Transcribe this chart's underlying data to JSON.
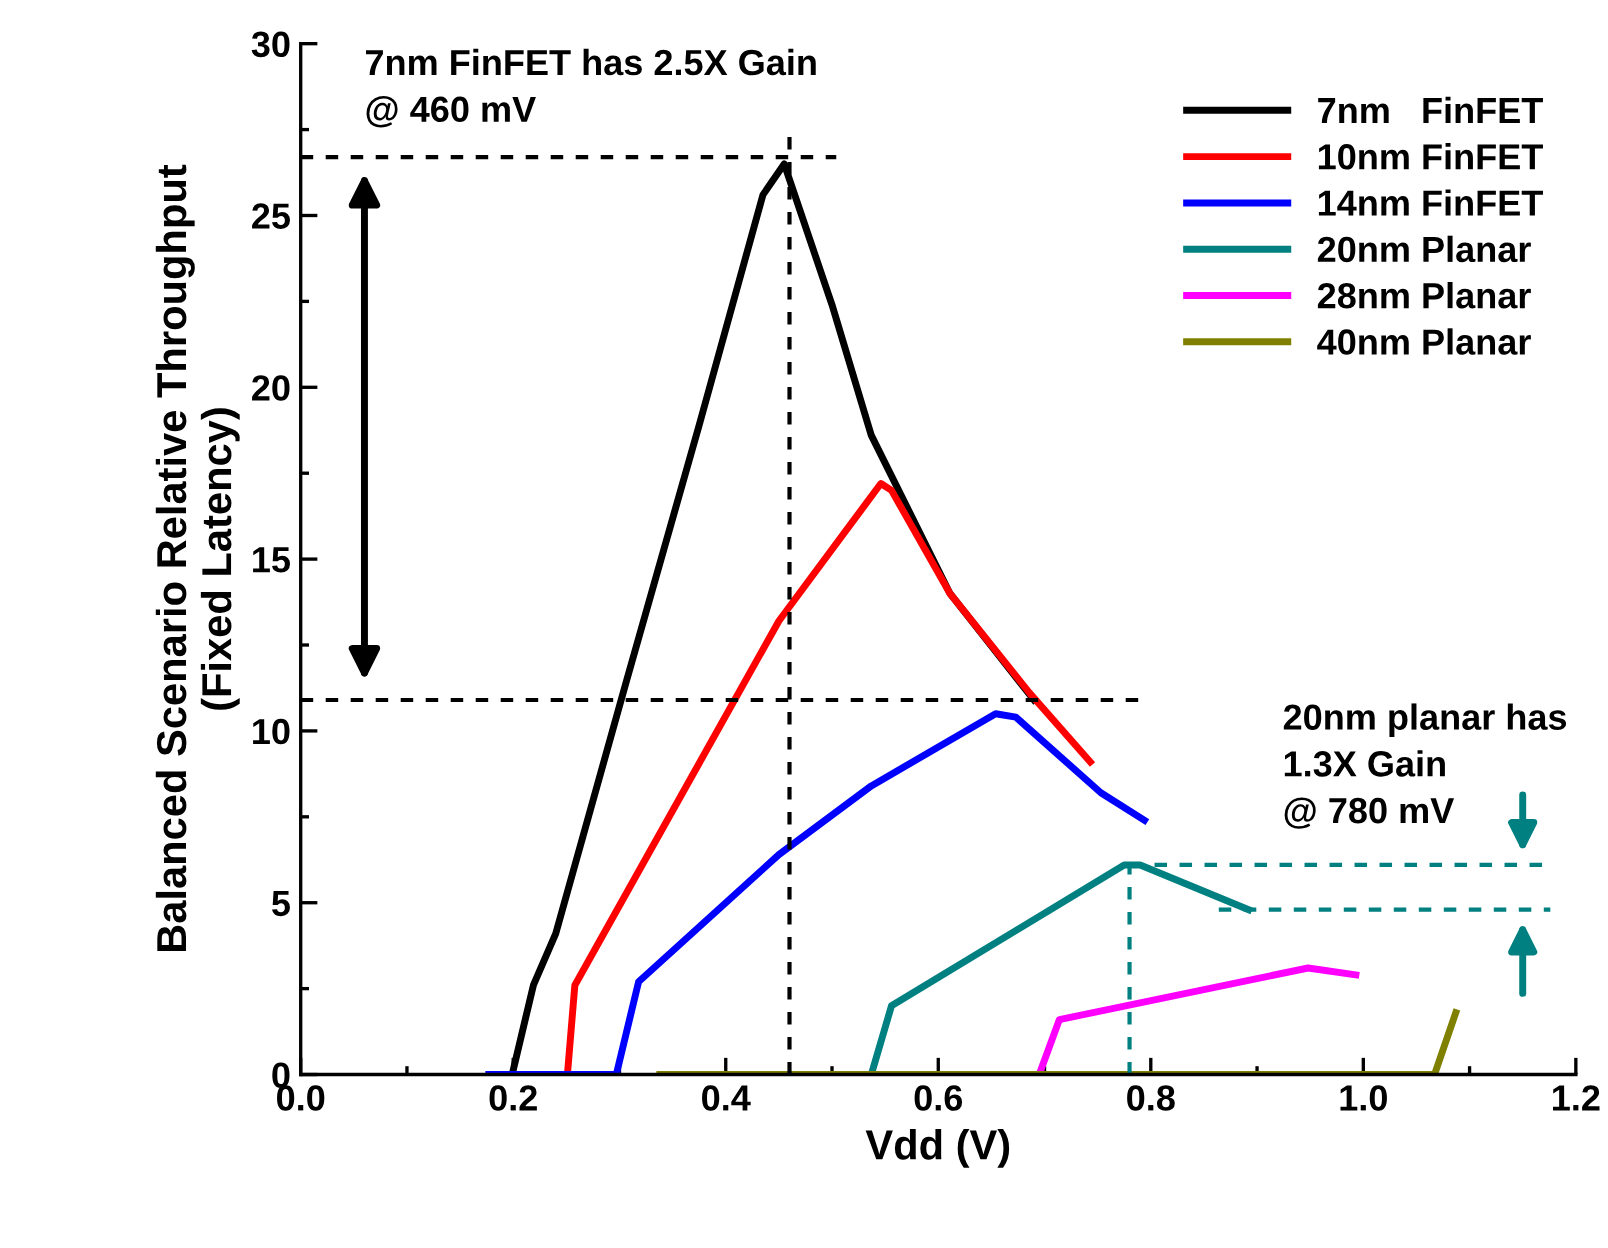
{
  "chart_data": {
    "type": "line",
    "xlabel": "Vdd (V)",
    "ylabel": "Balanced Scenario Relative Throughput\n(Fixed Latency)",
    "xlim": [
      0,
      1.2
    ],
    "ylim": [
      0,
      30
    ],
    "xticks": [
      "0.0",
      0.2,
      0.4,
      0.6,
      0.8,
      "1.0",
      "1.2",
      {
        "value": 0.1,
        "label": null
      },
      {
        "value": 0.3,
        "label": null
      },
      {
        "value": 0.5,
        "label": null
      },
      {
        "value": 0.7,
        "label": null
      },
      {
        "value": 0.9,
        "label": null
      },
      {
        "value": 1.1,
        "label": null
      }
    ],
    "yticks": [
      0,
      5,
      10,
      15,
      20,
      25,
      30,
      {
        "value": 2.5,
        "label": null
      },
      {
        "value": 7.5,
        "label": null
      },
      {
        "value": 12.5,
        "label": null
      },
      {
        "value": 17.5,
        "label": null
      },
      {
        "value": 22.5,
        "label": null
      },
      {
        "value": 27.5,
        "label": null
      }
    ],
    "grid": false,
    "legend": "top right",
    "marker": "none",
    "line_style": "solid",
    "series": [
      {
        "name": "7nm   FinFET",
        "color": "#000000",
        "x": [
          0.199,
          0.219,
          0.24,
          0.307,
          0.375,
          0.435,
          0.455,
          0.5,
          0.537,
          0.611,
          0.69
        ],
        "values": [
          0,
          2.6,
          4.1,
          11.5,
          18.9,
          25.6,
          26.5,
          22.4,
          18.6,
          14.0,
          10.9
        ]
      },
      {
        "name": "10nm FinFET",
        "color": "#ff0000",
        "x": [
          0.251,
          0.258,
          0.45,
          0.546,
          0.556,
          0.611,
          0.686,
          0.743
        ],
        "values": [
          0,
          2.6,
          13.2,
          17.2,
          17.0,
          14.0,
          11.1,
          9.1
        ]
      },
      {
        "name": "14nm FinFET",
        "color": "#0000ff",
        "x": [
          0.177,
          0.297,
          0.318,
          0.45,
          0.537,
          0.654,
          0.673,
          0.753,
          0.794
        ],
        "values": [
          0,
          0,
          2.7,
          6.4,
          8.4,
          10.5,
          10.4,
          8.2,
          7.4
        ]
      },
      {
        "name": "20nm Planar",
        "color": "#008080",
        "x": [
          0.537,
          0.556,
          0.775,
          0.79,
          0.892
        ],
        "values": [
          0,
          2.0,
          6.1,
          6.1,
          4.8
        ]
      },
      {
        "name": "28nm Planar",
        "color": "#ff00ff",
        "x": [
          0.695,
          0.714,
          0.948,
          0.993
        ],
        "values": [
          0,
          1.6,
          3.1,
          2.9
        ]
      },
      {
        "name": "40nm Planar",
        "color": "#808000",
        "x": [
          0.338,
          1.067,
          1.087
        ],
        "values": [
          0,
          0,
          1.8
        ]
      }
    ],
    "ref_lines": [
      {
        "axis": "y",
        "value": 26.7,
        "color": "#000000",
        "line_style": "dotted"
      },
      {
        "axis": "y",
        "value": 10.9,
        "color": "#000000",
        "line_style": "dotted"
      },
      {
        "axis": "x",
        "value": 0.46,
        "color": "#000000",
        "line_style": "dotted"
      },
      {
        "axis": "y",
        "value": 6.1,
        "color": "#008080",
        "line_style": "dotted"
      },
      {
        "axis": "y",
        "value": 4.8,
        "color": "#008080",
        "line_style": "dotted"
      },
      {
        "axis": "x",
        "value": 0.78,
        "color": "#008080",
        "line_style": "dotted"
      }
    ],
    "annotations": [
      "7nm FinFET has 2.5X Gain\n@ 460 mV",
      "20nm planar has\n1.3X Gain\n@ 780 mV"
    ]
  }
}
